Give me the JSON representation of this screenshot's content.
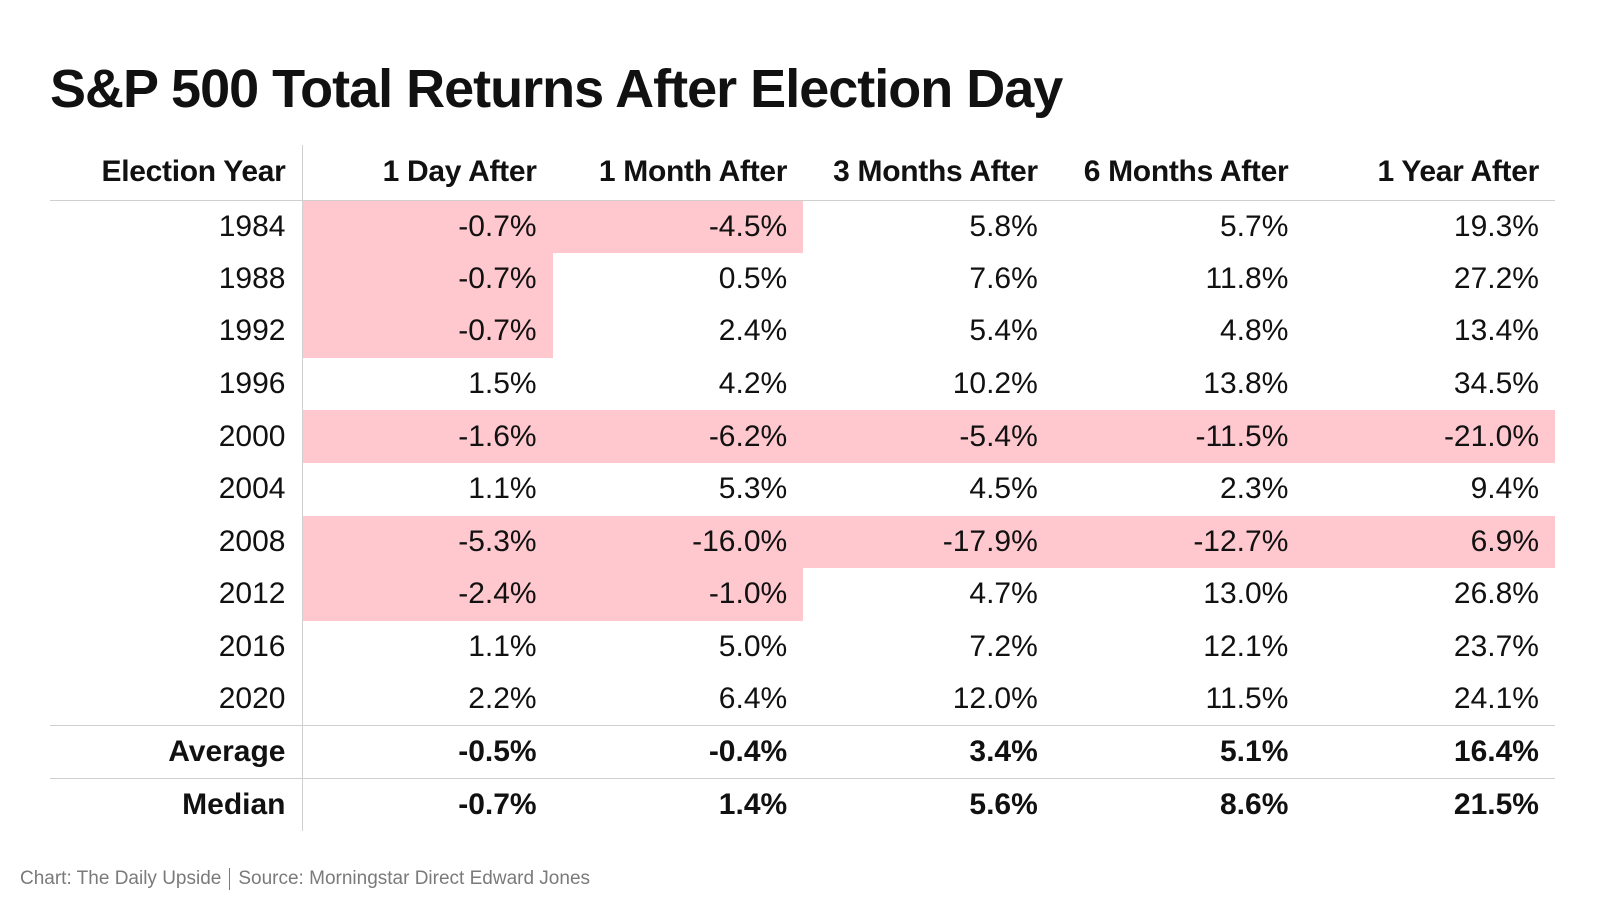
{
  "title": "S&P 500 Total Returns After Election Day",
  "highlight_color": "#ffc8cf",
  "chart_data": {
    "type": "table",
    "title": "S&P 500 Total Returns After Election Day",
    "columns": [
      "Election Year",
      "1 Day After",
      "1 Month After",
      "3 Months After",
      "6 Months After",
      "1 Year After"
    ],
    "rows": [
      [
        "1984",
        "-0.7%",
        "-4.5%",
        "5.8%",
        "5.7%",
        "19.3%"
      ],
      [
        "1988",
        "-0.7%",
        "0.5%",
        "7.6%",
        "11.8%",
        "27.2%"
      ],
      [
        "1992",
        "-0.7%",
        "2.4%",
        "5.4%",
        "4.8%",
        "13.4%"
      ],
      [
        "1996",
        "1.5%",
        "4.2%",
        "10.2%",
        "13.8%",
        "34.5%"
      ],
      [
        "2000",
        "-1.6%",
        "-6.2%",
        "-5.4%",
        "-11.5%",
        "-21.0%"
      ],
      [
        "2004",
        "1.1%",
        "5.3%",
        "4.5%",
        "2.3%",
        "9.4%"
      ],
      [
        "2008",
        "-5.3%",
        "-16.0%",
        "-17.9%",
        "-12.7%",
        "6.9%"
      ],
      [
        "2012",
        "-2.4%",
        "-1.0%",
        "4.7%",
        "13.0%",
        "26.8%"
      ],
      [
        "2016",
        "1.1%",
        "5.0%",
        "7.2%",
        "12.1%",
        "23.7%"
      ],
      [
        "2020",
        "2.2%",
        "6.4%",
        "12.0%",
        "11.5%",
        "24.1%"
      ]
    ],
    "highlighted": [
      [
        true,
        true,
        false,
        false,
        false
      ],
      [
        true,
        false,
        false,
        false,
        false
      ],
      [
        true,
        false,
        false,
        false,
        false
      ],
      [
        false,
        false,
        false,
        false,
        false
      ],
      [
        true,
        true,
        true,
        true,
        true
      ],
      [
        false,
        false,
        false,
        false,
        false
      ],
      [
        true,
        true,
        true,
        true,
        true
      ],
      [
        true,
        true,
        false,
        false,
        false
      ],
      [
        false,
        false,
        false,
        false,
        false
      ],
      [
        false,
        false,
        false,
        false,
        false
      ]
    ],
    "summary": [
      [
        "Average",
        "-0.5%",
        "-0.4%",
        "3.4%",
        "5.1%",
        "16.4%"
      ],
      [
        "Median",
        "-0.7%",
        "1.4%",
        "5.6%",
        "8.6%",
        "21.5%"
      ]
    ]
  },
  "footer": {
    "chart_credit": "Chart: The Daily Upside",
    "source": "Source: Morningstar Direct Edward Jones"
  }
}
